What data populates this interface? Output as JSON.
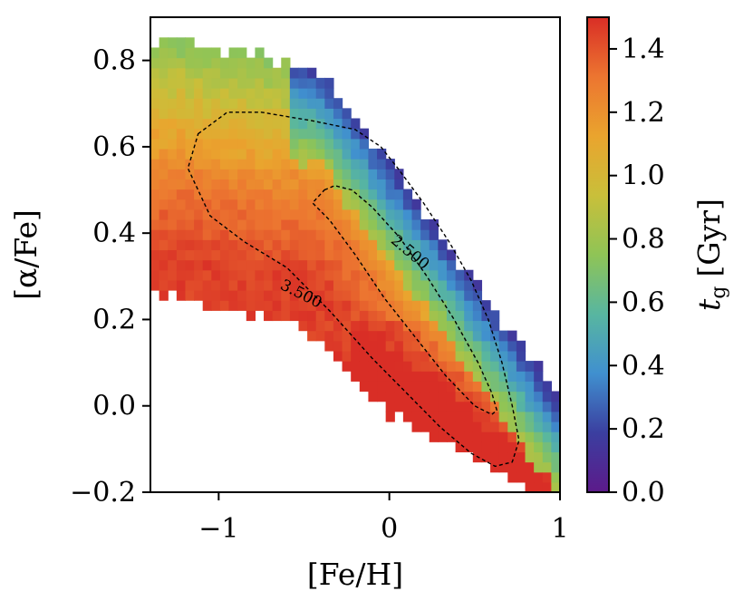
{
  "chart_data": {
    "type": "heatmap",
    "title": "",
    "xlabel": "[Fe/H]",
    "ylabel": "[α/Fe]",
    "xlim": [
      -1.4,
      1.0
    ],
    "ylim": [
      -0.2,
      0.9
    ],
    "xticks": [
      -1,
      0,
      1
    ],
    "xtick_labels": [
      "−1",
      "0",
      "1"
    ],
    "yticks": [
      -0.2,
      0.0,
      0.2,
      0.4,
      0.6,
      0.8
    ],
    "ytick_labels": [
      "−0.2",
      "0.0",
      "0.2",
      "0.4",
      "0.6",
      "0.8"
    ],
    "colorbar": {
      "label_var": "t",
      "label_sub": "g",
      "label_unit": "[Gyr]",
      "range": [
        0.0,
        1.5
      ],
      "ticks": [
        0.0,
        0.2,
        0.4,
        0.6,
        0.8,
        1.0,
        1.2,
        1.4
      ],
      "tick_labels": [
        "0.0",
        "0.2",
        "0.4",
        "0.6",
        "0.8",
        "1.0",
        "1.2",
        "1.4"
      ],
      "colormap": [
        "#5c1a8a",
        "#3b3fa0",
        "#4090cf",
        "#58b6a0",
        "#8fc456",
        "#c9bf3a",
        "#eaa42e",
        "#ec7530",
        "#d92e26"
      ]
    },
    "grid": false,
    "contours": [
      {
        "level_label": "2.500",
        "points": [
          [
            -0.38,
            0.5
          ],
          [
            -0.32,
            0.51
          ],
          [
            -0.22,
            0.5
          ],
          [
            -0.1,
            0.46
          ],
          [
            0.06,
            0.39
          ],
          [
            0.22,
            0.3
          ],
          [
            0.38,
            0.2
          ],
          [
            0.52,
            0.1
          ],
          [
            0.6,
            0.03
          ],
          [
            0.63,
            -0.01
          ],
          [
            0.6,
            -0.02
          ],
          [
            0.5,
            0.0
          ],
          [
            0.33,
            0.07
          ],
          [
            0.15,
            0.16
          ],
          [
            -0.03,
            0.25
          ],
          [
            -0.2,
            0.35
          ],
          [
            -0.35,
            0.43
          ],
          [
            -0.45,
            0.47
          ],
          [
            -0.38,
            0.5
          ]
        ]
      },
      {
        "level_label": "3.500",
        "points": [
          [
            -1.12,
            0.63
          ],
          [
            -0.95,
            0.68
          ],
          [
            -0.75,
            0.68
          ],
          [
            -0.45,
            0.66
          ],
          [
            -0.2,
            0.64
          ],
          [
            -0.05,
            0.6
          ],
          [
            0.05,
            0.55
          ],
          [
            0.2,
            0.47
          ],
          [
            0.35,
            0.38
          ],
          [
            0.48,
            0.29
          ],
          [
            0.58,
            0.2
          ],
          [
            0.66,
            0.1
          ],
          [
            0.72,
            0.0
          ],
          [
            0.76,
            -0.08
          ],
          [
            0.72,
            -0.13
          ],
          [
            0.62,
            -0.14
          ],
          [
            0.48,
            -0.11
          ],
          [
            0.3,
            -0.05
          ],
          [
            0.1,
            0.03
          ],
          [
            -0.1,
            0.11
          ],
          [
            -0.35,
            0.22
          ],
          [
            -0.6,
            0.32
          ],
          [
            -0.85,
            0.38
          ],
          [
            -1.05,
            0.44
          ],
          [
            -1.18,
            0.55
          ],
          [
            -1.12,
            0.63
          ]
        ]
      }
    ]
  }
}
